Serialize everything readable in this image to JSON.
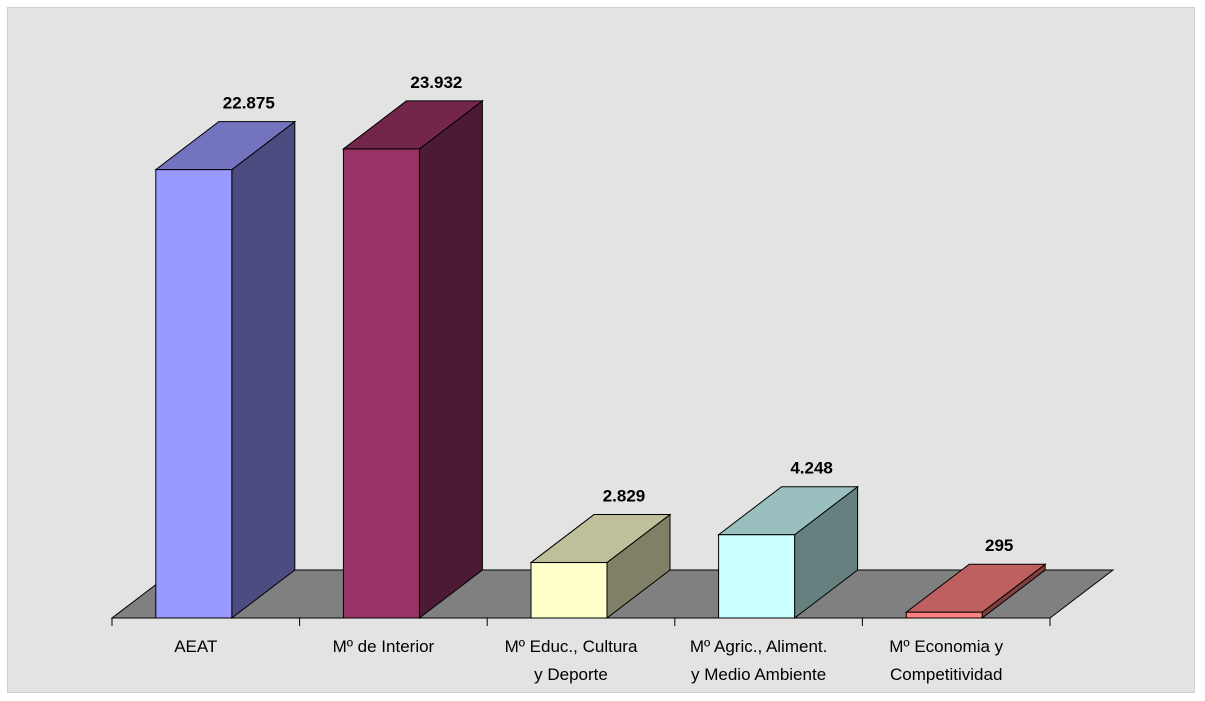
{
  "chart_data": {
    "type": "bar",
    "style": "3d-column",
    "categories": [
      [
        "AEAT"
      ],
      [
        "Mº de Interior"
      ],
      [
        "Mº Educ., Cultura",
        "y Deporte"
      ],
      [
        "Mº Agric., Aliment.",
        "y Medio Ambiente"
      ],
      [
        "Mº Economia y",
        "Competitividad"
      ]
    ],
    "values": [
      22875,
      23932,
      2829,
      4248,
      295
    ],
    "data_labels": [
      "22.875",
      "23.932",
      "2.829",
      "4.248",
      "295"
    ],
    "colors": {
      "front": [
        "#9999ff",
        "#993366",
        "#ffffcc",
        "#ccffff",
        "#ff8080"
      ],
      "top": [
        "#7373bf",
        "#732649",
        "#bfbf99",
        "#99bfbf",
        "#bf6060"
      ],
      "side": [
        "#4c4c80",
        "#4c1a33",
        "#808066",
        "#668080",
        "#804040"
      ],
      "floor": "#808080",
      "background": "#e3e3e3"
    },
    "title": "",
    "xlabel": "",
    "ylabel": "",
    "ylim": [
      0,
      25000
    ],
    "grid": false,
    "legend": "none"
  }
}
